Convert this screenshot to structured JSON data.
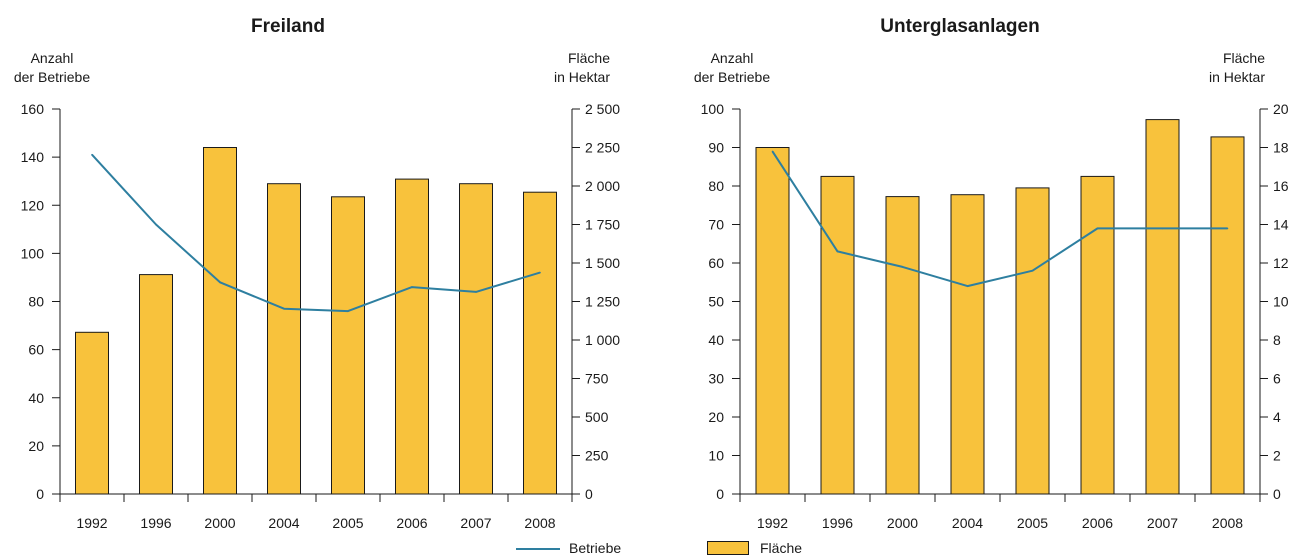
{
  "colors": {
    "bar_fill": "#F8C23C",
    "bar_stroke": "#1a1a1a",
    "line": "#2E7FA0",
    "axis": "#1a1a1a"
  },
  "chart_data": [
    {
      "type": "bar+line",
      "title": "Freiland",
      "ylabel_left": [
        "Anzahl",
        "der Betriebe"
      ],
      "ylabel_right": [
        "Fläche",
        "in Hektar"
      ],
      "categories": [
        "1992",
        "1996",
        "2000",
        "2004",
        "2005",
        "2006",
        "2007",
        "2008"
      ],
      "ylim_left": [
        0,
        160
      ],
      "ylim_right": [
        0,
        2500
      ],
      "yticks_left": [
        "0",
        "20",
        "40",
        "60",
        "80",
        "100",
        "120",
        "140",
        "160"
      ],
      "yticks_right": [
        "0",
        "250",
        "500",
        "750",
        "1 000",
        "1 250",
        "1 500",
        "1 750",
        "2 000",
        "2 250",
        "2 500"
      ],
      "series": [
        {
          "name": "Fläche",
          "kind": "bar",
          "axis": "right",
          "values": [
            1050,
            1425,
            2250,
            2015,
            1930,
            2045,
            2015,
            1960
          ]
        },
        {
          "name": "Betriebe",
          "kind": "line",
          "axis": "left",
          "values": [
            141,
            112,
            88,
            77,
            76,
            86,
            84,
            92
          ]
        }
      ]
    },
    {
      "type": "bar+line",
      "title": "Unterglasanlagen",
      "ylabel_left": [
        "Anzahl",
        "der Betriebe"
      ],
      "ylabel_right": [
        "Fläche",
        "in Hektar"
      ],
      "categories": [
        "1992",
        "1996",
        "2000",
        "2004",
        "2005",
        "2006",
        "2007",
        "2008"
      ],
      "ylim_left": [
        0,
        100
      ],
      "ylim_right": [
        0,
        20
      ],
      "yticks_left": [
        "0",
        "10",
        "20",
        "30",
        "40",
        "50",
        "60",
        "70",
        "80",
        "90",
        "100"
      ],
      "yticks_right": [
        "0",
        "2",
        "4",
        "6",
        "8",
        "10",
        "12",
        "14",
        "16",
        "18",
        "20"
      ],
      "series": [
        {
          "name": "Fläche",
          "kind": "bar",
          "axis": "right",
          "values": [
            18.0,
            16.5,
            15.45,
            15.55,
            15.9,
            16.5,
            19.45,
            18.55
          ]
        },
        {
          "name": "Betriebe",
          "kind": "line",
          "axis": "left",
          "values": [
            89,
            63,
            59,
            54,
            58,
            69,
            69,
            69
          ]
        }
      ]
    }
  ],
  "legend": {
    "line_label": "Betriebe",
    "bar_label": "Fläche"
  }
}
